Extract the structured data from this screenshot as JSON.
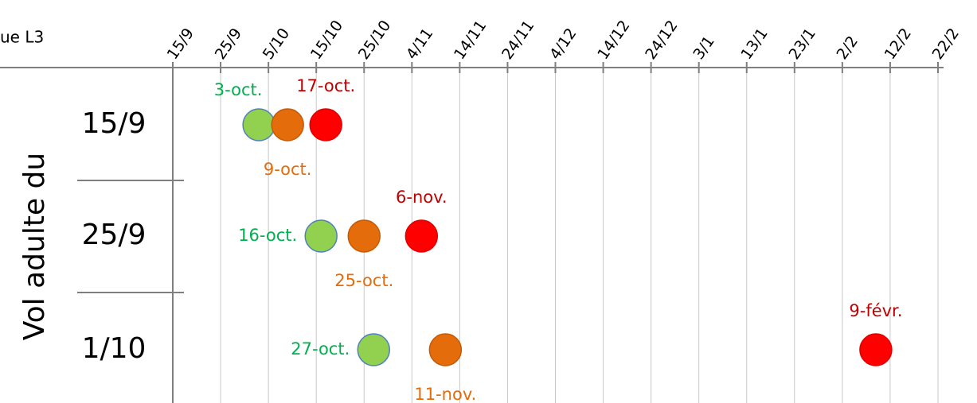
{
  "chart_data": {
    "type": "scatter",
    "header": "ue L3",
    "ylabel": "Vol adulte du",
    "categories": [
      "15/9",
      "25/9",
      "1/10"
    ],
    "xlim": [
      0,
      160
    ],
    "xticks": [
      {
        "value": 0,
        "label": "15/9"
      },
      {
        "value": 10,
        "label": "25/9"
      },
      {
        "value": 20,
        "label": "5/10"
      },
      {
        "value": 30,
        "label": "15/10"
      },
      {
        "value": 40,
        "label": "25/10"
      },
      {
        "value": 50,
        "label": "4/11"
      },
      {
        "value": 60,
        "label": "14/11"
      },
      {
        "value": 70,
        "label": "24/11"
      },
      {
        "value": 80,
        "label": "4/12"
      },
      {
        "value": 90,
        "label": "14/12"
      },
      {
        "value": 100,
        "label": "24/12"
      },
      {
        "value": 110,
        "label": "3/1"
      },
      {
        "value": 120,
        "label": "13/1"
      },
      {
        "value": 130,
        "label": "23/1"
      },
      {
        "value": 140,
        "label": "2/2"
      },
      {
        "value": 150,
        "label": "12/2"
      },
      {
        "value": 160,
        "label": "22/2"
      }
    ],
    "grid": true,
    "series": [
      {
        "color": "#92d050",
        "outline": "#4f81bd",
        "label_color": "#00b050",
        "values": [
          18,
          31,
          42
        ],
        "value_labels": [
          "3-oct.",
          "16-oct.",
          "27-oct."
        ]
      },
      {
        "color": "#e46c0a",
        "outline": "#c55a08",
        "label_color": "#e46c0a",
        "values": [
          24,
          40,
          57
        ],
        "value_labels": [
          "9-oct.",
          "25-oct.",
          "11-nov."
        ]
      },
      {
        "color": "#ff0000",
        "outline": "#e00000",
        "label_color": "#c00000",
        "values": [
          32,
          52,
          147
        ],
        "value_labels": [
          "17-oct.",
          "6-nov.",
          "9-févr."
        ]
      }
    ]
  }
}
